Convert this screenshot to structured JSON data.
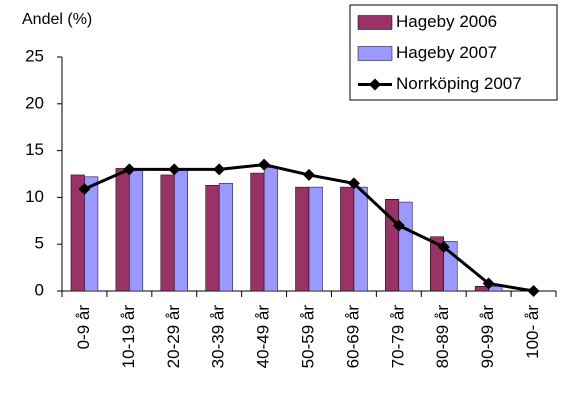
{
  "chart_data": {
    "type": "bar",
    "y_axis_label": "Andel (%)",
    "categories": [
      "0-9 år",
      "10-19 år",
      "20-29 år",
      "30-39 år",
      "40-49 år",
      "50-59 år",
      "60-69 år",
      "70-79 år",
      "80-89 år",
      "90-99 år",
      "100- år"
    ],
    "series": [
      {
        "name": "Hageby 2006",
        "color": "#993366",
        "values": [
          12.4,
          13.1,
          12.4,
          11.3,
          12.6,
          11.1,
          11.1,
          9.8,
          5.8,
          0.5,
          0
        ]
      },
      {
        "name": "Hageby 2007",
        "color": "#9999ff",
        "values": [
          12.2,
          13.1,
          13.1,
          11.5,
          13.2,
          11.1,
          11.1,
          9.5,
          5.3,
          0.5,
          0
        ]
      },
      {
        "name": "Norrköping 2007",
        "color": "#000000",
        "type": "line",
        "values": [
          10.9,
          13.0,
          13.0,
          13.0,
          13.5,
          12.4,
          11.5,
          7.0,
          4.7,
          0.8,
          0
        ]
      }
    ],
    "ylim": [
      0,
      25
    ],
    "yticks": [
      0,
      5,
      10,
      15,
      20,
      25
    ],
    "grid": false,
    "legend": "top-right"
  }
}
